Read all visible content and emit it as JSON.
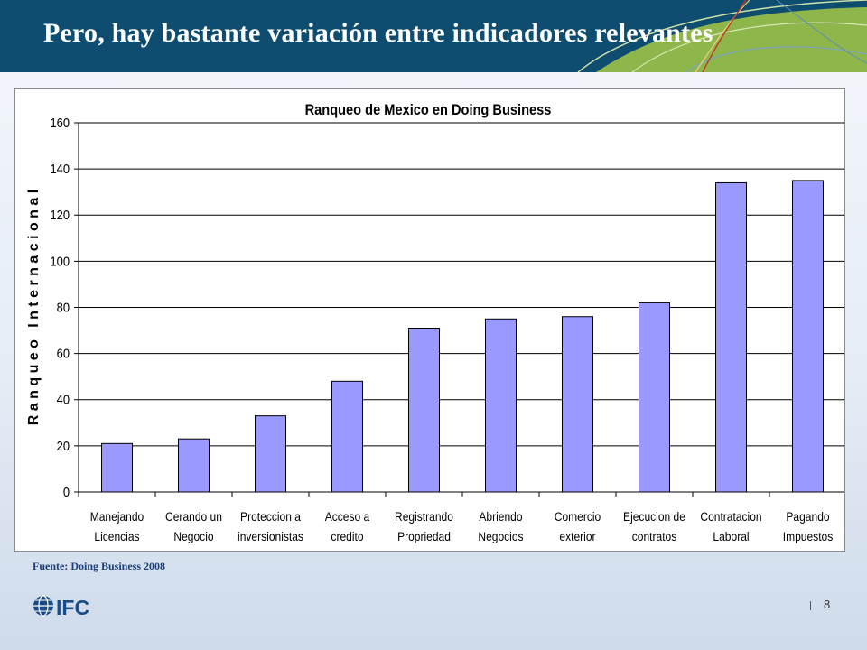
{
  "slide": {
    "title": "Pero, hay bastante variación entre indicadores relevantes",
    "source": "Fuente: Doing Business 2008",
    "page_number": "8",
    "logo_text": "IFC",
    "colors": {
      "header": "#0e4d6f",
      "bar_fill": "#9999ff",
      "accent": "#8fb64a"
    }
  },
  "chart_data": {
    "type": "bar",
    "title": "Ranqueo de Mexico en Doing Business",
    "ylabel": "R a n q u e o   I n t e r n a c i o n a l",
    "xlabel": "",
    "ylim": [
      0,
      160
    ],
    "yticks": [
      0,
      20,
      40,
      60,
      80,
      100,
      120,
      140,
      160
    ],
    "grid": true,
    "legend": "none",
    "categories": [
      [
        "Manejando",
        "Licencias"
      ],
      [
        "Cerando un",
        "Negocio"
      ],
      [
        "Proteccion a",
        "inversionistas"
      ],
      [
        "Acceso a",
        "credito"
      ],
      [
        "Registrando",
        "Propriedad"
      ],
      [
        "Abriendo",
        "Negocios"
      ],
      [
        "Comercio",
        "exterior"
      ],
      [
        "Ejecucion de",
        "contratos"
      ],
      [
        "Contratacion",
        "Laboral"
      ],
      [
        "Pagando",
        "Impuestos"
      ]
    ],
    "values": [
      21,
      23,
      33,
      48,
      71,
      75,
      76,
      82,
      134,
      135
    ]
  }
}
